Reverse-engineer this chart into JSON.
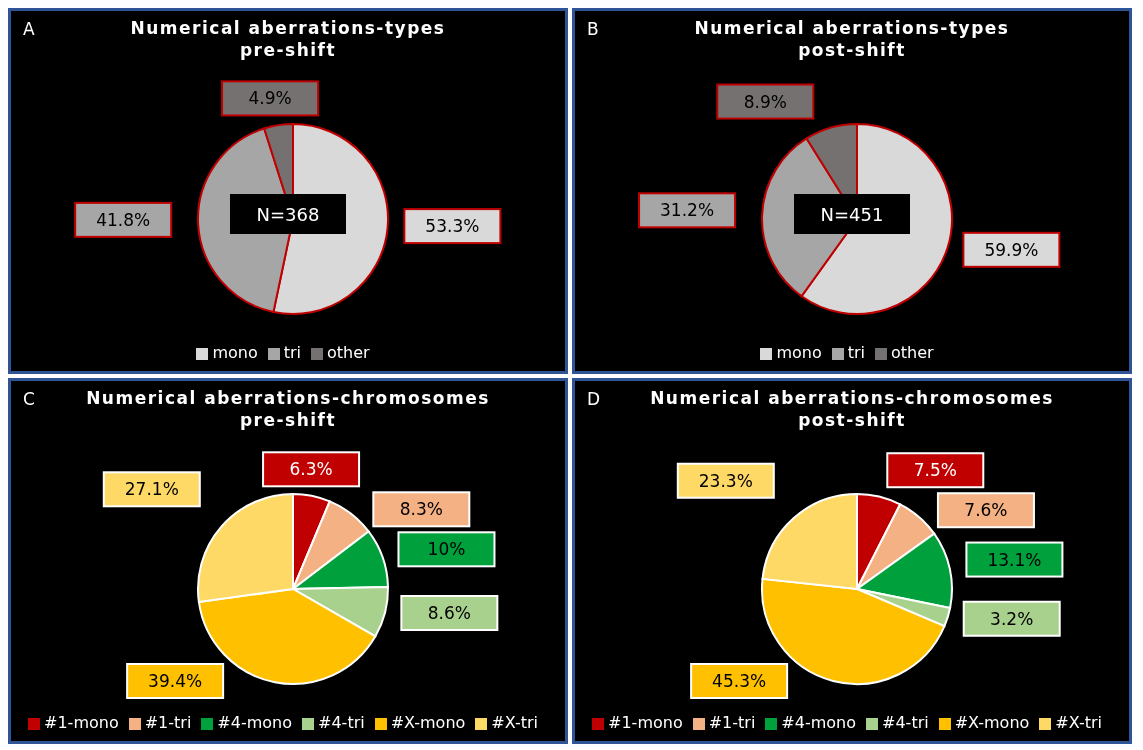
{
  "chart_data": [
    {
      "type": "pie",
      "title": "Numerical aberrations-types",
      "subtitle": "pre-shift",
      "annotations": [
        "A",
        "N=368"
      ],
      "categories": [
        "mono",
        "tri",
        "other"
      ],
      "values": [
        53.3,
        41.8,
        4.9
      ],
      "value_labels": [
        "53.3%",
        "41.8%",
        "4.9%"
      ],
      "colors": [
        "#d9d9d9",
        "#a6a6a6",
        "#767171"
      ],
      "legend": "bottom"
    },
    {
      "type": "pie",
      "title": "Numerical aberrations-types",
      "subtitle": "post-shift",
      "annotations": [
        "B",
        "N=451"
      ],
      "categories": [
        "mono",
        "tri",
        "other"
      ],
      "values": [
        59.9,
        31.2,
        8.9
      ],
      "value_labels": [
        "59.9%",
        "31.2%",
        "8.9%"
      ],
      "colors": [
        "#d9d9d9",
        "#a6a6a6",
        "#767171"
      ],
      "legend": "bottom"
    },
    {
      "type": "pie",
      "title": "Numerical aberrations-chromosomes",
      "subtitle": "pre-shift",
      "annotations": [
        "C"
      ],
      "categories": [
        "#1-mono",
        "#1-tri",
        "#4-mono",
        "#4-tri",
        "#X-mono",
        "#X-tri"
      ],
      "values": [
        6.3,
        8.3,
        10,
        8.6,
        39.4,
        27.1
      ],
      "value_labels": [
        "6.3%",
        "8.3%",
        "10%",
        "8.6%",
        "39.4%",
        "27.1%"
      ],
      "colors": [
        "#c00000",
        "#f4b183",
        "#00a03c",
        "#a9d18e",
        "#ffc000",
        "#ffd966"
      ],
      "legend": "bottom"
    },
    {
      "type": "pie",
      "title": "Numerical aberrations-chromosomes",
      "subtitle": "post-shift",
      "annotations": [
        "D"
      ],
      "categories": [
        "#1-mono",
        "#1-tri",
        "#4-mono",
        "#4-tri",
        "#X-mono",
        "#X-tri"
      ],
      "values": [
        7.5,
        7.6,
        13.1,
        3.2,
        45.3,
        23.3
      ],
      "value_labels": [
        "7.5%",
        "7.6%",
        "13.1%",
        "3.2%",
        "45.3%",
        "23.3%"
      ],
      "colors": [
        "#c00000",
        "#f4b183",
        "#00a03c",
        "#a9d18e",
        "#ffc000",
        "#ffd966"
      ],
      "legend": "bottom"
    }
  ]
}
